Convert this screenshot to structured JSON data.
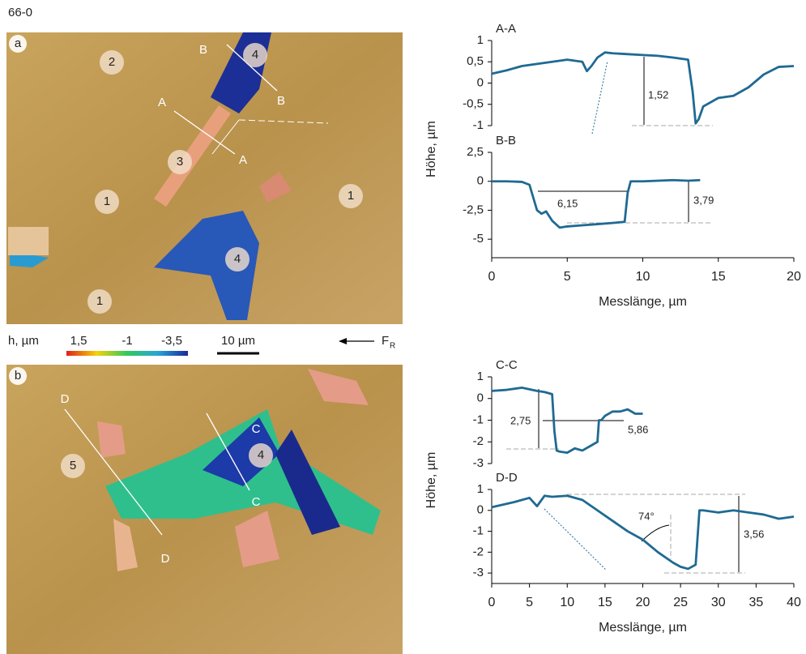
{
  "figure_id": "66-0",
  "legend": {
    "h_label": "h, µm",
    "scale_labels": [
      "1,5",
      "-1",
      "-3,5"
    ],
    "scalebar": "10 µm",
    "force": "F",
    "force_sub": "R"
  },
  "images": [
    {
      "panel": "a",
      "markers": [
        {
          "text": "1"
        },
        {
          "text": "1"
        },
        {
          "text": "1"
        },
        {
          "text": "2"
        },
        {
          "text": "3"
        },
        {
          "text": "4"
        },
        {
          "text": "4"
        }
      ],
      "section_labels": [
        "A",
        "A",
        "B",
        "B"
      ]
    },
    {
      "panel": "b",
      "markers": [
        {
          "text": "5"
        },
        {
          "text": "4"
        }
      ],
      "section_labels": [
        "C",
        "C",
        "D",
        "D"
      ]
    }
  ],
  "chart_data": [
    {
      "type": "line",
      "title": "A-A",
      "y_label": "Höhe, µm",
      "x": [
        0,
        1,
        2,
        3,
        4,
        5,
        6,
        6.3,
        6.6,
        7,
        7.5,
        8,
        9,
        10,
        11,
        12,
        13,
        13.3,
        13.5,
        13.7,
        14,
        15,
        16,
        17,
        18,
        19,
        20
      ],
      "series": [
        {
          "name": "A-A",
          "color": "#1f6a93",
          "values": [
            0.22,
            0.3,
            0.4,
            0.45,
            0.5,
            0.55,
            0.5,
            0.28,
            0.4,
            0.6,
            0.72,
            0.7,
            0.68,
            0.66,
            0.64,
            0.6,
            0.55,
            -0.2,
            -0.95,
            -0.85,
            -0.55,
            -0.35,
            -0.3,
            -0.1,
            0.2,
            0.38,
            0.4
          ]
        }
      ],
      "xlim": [
        0,
        20
      ],
      "ylim": [
        -1,
        1
      ],
      "yticks": [
        1,
        {
          "value": 0.5,
          "label": "0,5"
        },
        0,
        {
          "value": -0.5,
          "label": "-0,5"
        },
        -1
      ],
      "annotations": [
        "1,52"
      ]
    },
    {
      "type": "line",
      "title": "B-B",
      "x_label": "Messlänge, µm",
      "x": [
        0,
        1,
        2,
        2.5,
        3,
        3.3,
        3.6,
        4,
        4.5,
        5,
        6,
        7,
        8,
        8.8,
        9,
        9.2,
        10,
        11,
        12,
        13,
        13.8
      ],
      "series": [
        {
          "name": "B-B",
          "color": "#1f6a93",
          "values": [
            0,
            0,
            -0.05,
            -0.3,
            -2.5,
            -2.8,
            -2.6,
            -3.4,
            -4,
            -3.9,
            -3.8,
            -3.7,
            -3.6,
            -3.5,
            -1,
            0,
            0,
            0.05,
            0.1,
            0.05,
            0.1
          ]
        }
      ],
      "xlim": [
        0,
        20
      ],
      "xticks": [
        0,
        5,
        10,
        15,
        20
      ],
      "ylim": [
        -6.6,
        2.5
      ],
      "yticks": [
        {
          "value": 2.5,
          "label": "2,5"
        },
        0,
        {
          "value": -2.5,
          "label": "-2,5"
        },
        -5
      ],
      "annotations": [
        "6,15",
        "3,79"
      ]
    },
    {
      "type": "line",
      "title": "C-C",
      "y_label": "Höhe, µm",
      "x": [
        0,
        2,
        4,
        6,
        7,
        8,
        8.3,
        8.6,
        9,
        10,
        11,
        12,
        13,
        14,
        14.2,
        14.5,
        15,
        16,
        17,
        18,
        19,
        20
      ],
      "series": [
        {
          "name": "C-C",
          "color": "#1f6a93",
          "values": [
            0.35,
            0.4,
            0.5,
            0.35,
            0.3,
            0.2,
            -1.5,
            -2.4,
            -2.45,
            -2.5,
            -2.3,
            -2.4,
            -2.2,
            -2,
            -1,
            -1,
            -0.8,
            -0.6,
            -0.6,
            -0.5,
            -0.7,
            -0.7
          ]
        }
      ],
      "xlim": [
        0,
        40
      ],
      "ylim": [
        -3,
        1
      ],
      "yticks": [
        1,
        0,
        -1,
        -2,
        -3
      ],
      "annotations": [
        "2,75",
        "5,86"
      ]
    },
    {
      "type": "line",
      "title": "D-D",
      "x_label": "Messlänge, µm",
      "x": [
        0,
        3,
        5,
        6,
        7,
        8,
        10,
        12,
        14,
        16,
        18,
        20,
        22,
        24,
        25,
        26,
        27,
        27.5,
        28,
        30,
        32,
        34,
        36,
        38,
        40
      ],
      "series": [
        {
          "name": "D-D",
          "color": "#1f6a93",
          "values": [
            0.15,
            0.4,
            0.6,
            0.2,
            0.7,
            0.65,
            0.7,
            0.5,
            0,
            -0.5,
            -1,
            -1.4,
            -2,
            -2.5,
            -2.7,
            -2.8,
            -2.6,
            0,
            0,
            -0.1,
            0,
            -0.1,
            -0.2,
            -0.4,
            -0.3
          ]
        }
      ],
      "xlim": [
        0,
        40
      ],
      "xticks": [
        0,
        5,
        10,
        15,
        20,
        25,
        30,
        35,
        40
      ],
      "ylim": [
        -3.5,
        1
      ],
      "yticks": [
        1,
        0,
        -1,
        -2,
        -3
      ],
      "annotations": [
        "74°",
        "3,56"
      ]
    }
  ]
}
